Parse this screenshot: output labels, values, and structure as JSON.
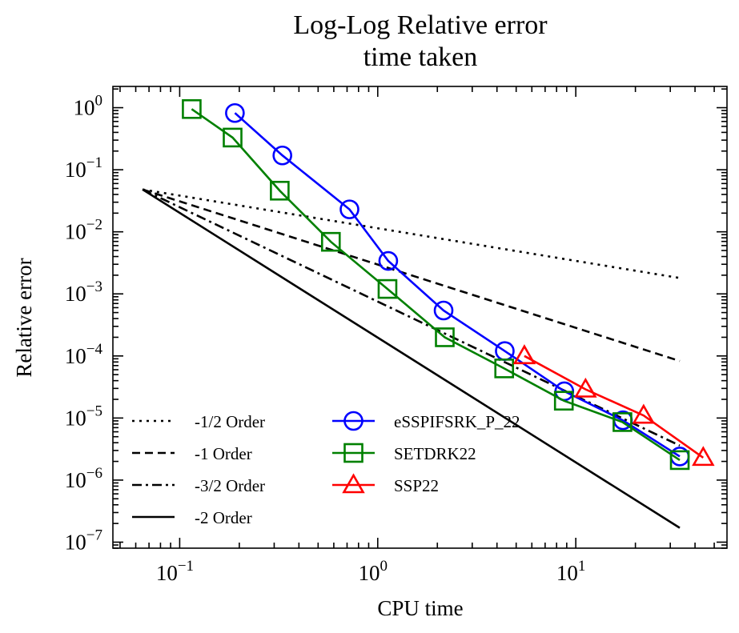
{
  "chart_data": {
    "type": "line",
    "title": [
      "Log-Log Relative error",
      "time taken"
    ],
    "xlabel": "CPU time",
    "ylabel": "Relative error",
    "xscale": "log",
    "yscale": "log",
    "xlim": [
      0.046,
      58
    ],
    "ylim": [
      8e-08,
      2.2
    ],
    "grid": false,
    "xticks": [
      {
        "value": 0.1,
        "base": "10",
        "exp": "−1"
      },
      {
        "value": 1,
        "base": "10",
        "exp": "0"
      },
      {
        "value": 10,
        "base": "10",
        "exp": "1"
      }
    ],
    "yticks": [
      {
        "value": 1,
        "base": "10",
        "exp": "0"
      },
      {
        "value": 0.1,
        "base": "10",
        "exp": "−1"
      },
      {
        "value": 0.01,
        "base": "10",
        "exp": "−2"
      },
      {
        "value": 0.001,
        "base": "10",
        "exp": "−3"
      },
      {
        "value": 0.0001,
        "base": "10",
        "exp": "−4"
      },
      {
        "value": 1e-05,
        "base": "10",
        "exp": "−5"
      },
      {
        "value": 1e-06,
        "base": "10",
        "exp": "−6"
      },
      {
        "value": 1e-07,
        "base": "10",
        "exp": "−7"
      }
    ],
    "reference_lines": [
      {
        "name": "-1/2 Order",
        "style": "dotted",
        "color": "#000000",
        "x": [
          0.065,
          33.5
        ],
        "y": [
          0.048,
          0.0018
        ]
      },
      {
        "name": "-1 Order",
        "style": "dashed",
        "color": "#000000",
        "x": [
          0.065,
          33.5
        ],
        "y": [
          0.048,
          8.3e-05
        ]
      },
      {
        "name": "-3/2 Order",
        "style": "dashdot",
        "color": "#000000",
        "x": [
          0.065,
          33.5
        ],
        "y": [
          0.048,
          3.6e-06
        ]
      },
      {
        "name": "-2 Order",
        "style": "solid",
        "color": "#000000",
        "x": [
          0.065,
          33.5
        ],
        "y": [
          0.048,
          1.7e-07
        ]
      }
    ],
    "series": [
      {
        "name": "eSSPIFSRK_P_22",
        "marker": "circle",
        "color": "#0000ff",
        "x": [
          0.19,
          0.33,
          0.72,
          1.13,
          2.15,
          4.38,
          8.75,
          17.3,
          33.5
        ],
        "y": [
          0.82,
          0.17,
          0.023,
          0.0034,
          0.00054,
          0.00012,
          2.7e-05,
          9.2e-06,
          2.4e-06
        ]
      },
      {
        "name": "SETDRK22",
        "marker": "square",
        "color": "#008000",
        "x": [
          0.115,
          0.185,
          0.32,
          0.58,
          1.12,
          2.18,
          4.35,
          8.7,
          17.2,
          33.5
        ],
        "y": [
          0.95,
          0.33,
          0.046,
          0.0069,
          0.0012,
          0.0002,
          6.3e-05,
          1.9e-05,
          8.6e-06,
          2.1e-06
        ]
      },
      {
        "name": "SSP22",
        "marker": "triangle",
        "color": "#ff0000",
        "x": [
          5.5,
          11.2,
          22,
          44
        ],
        "y": [
          0.0001,
          2.9e-05,
          1.1e-05,
          2.3e-06
        ]
      }
    ],
    "legend": {
      "placement": "lower-left",
      "columns": 2
    }
  }
}
